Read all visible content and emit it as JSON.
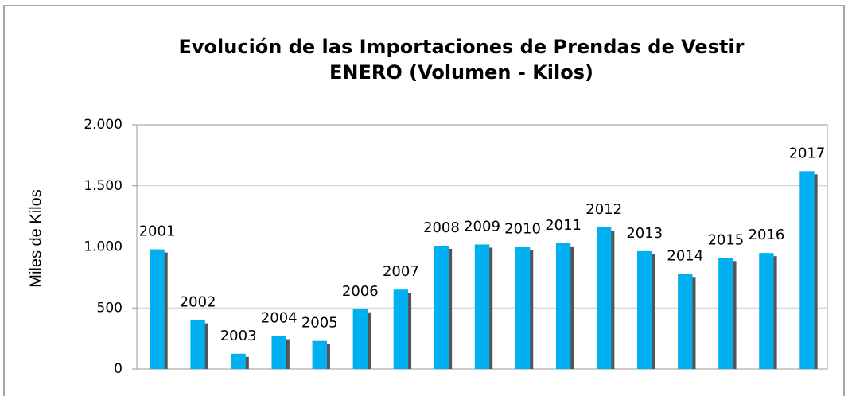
{
  "chart_data": {
    "type": "bar",
    "title": "Evolución de las Importaciones de Prendas de Vestir",
    "subtitle": "ENERO  (Volumen - Kilos)",
    "y_label": "Miles de Kilos",
    "categories": [
      "2001",
      "2002",
      "2003",
      "2004",
      "2005",
      "2006",
      "2007",
      "2008",
      "2009",
      "2010",
      "2011",
      "2012",
      "2013",
      "2014",
      "2015",
      "2016",
      "2017"
    ],
    "values": [
      980,
      400,
      125,
      270,
      230,
      490,
      650,
      1010,
      1020,
      1000,
      1030,
      1160,
      965,
      780,
      910,
      950,
      1620
    ],
    "color": "#00b0f0",
    "ylim": [
      0,
      2000
    ],
    "yticks": [
      0,
      500,
      {
        "value": 1000,
        "label": "1.000"
      },
      {
        "value": 1500,
        "label": "1.500"
      },
      {
        "value": 2000,
        "label": "2.000"
      }
    ],
    "grid": true
  }
}
